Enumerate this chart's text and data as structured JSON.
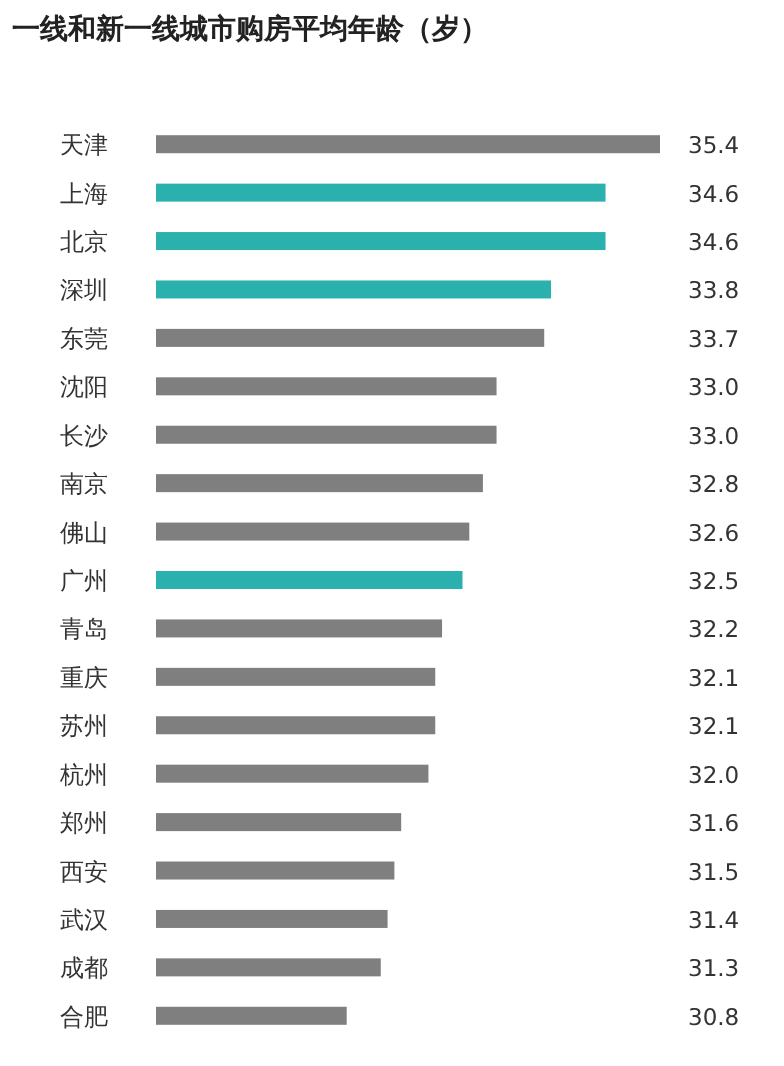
{
  "chart_data": {
    "type": "bar",
    "orientation": "horizontal",
    "title": "一线和新一线城市购房平均年龄（岁）",
    "categories": [
      "天津",
      "上海",
      "北京",
      "深圳",
      "东莞",
      "沈阳",
      "长沙",
      "南京",
      "佛山",
      "广州",
      "青岛",
      "重庆",
      "苏州",
      "杭州",
      "郑州",
      "西安",
      "武汉",
      "成都",
      "合肥"
    ],
    "values": [
      35.4,
      34.6,
      34.6,
      33.8,
      33.7,
      33.0,
      33.0,
      32.8,
      32.6,
      32.5,
      32.2,
      32.1,
      32.1,
      32.0,
      31.6,
      31.5,
      31.4,
      31.3,
      30.8
    ],
    "value_labels": [
      "35.4",
      "34.6",
      "34.6",
      "33.8",
      "33.7",
      "33.0",
      "33.0",
      "32.8",
      "32.6",
      "32.5",
      "32.2",
      "32.1",
      "32.1",
      "32.0",
      "31.6",
      "31.5",
      "31.4",
      "31.3",
      "30.8"
    ],
    "colors": [
      "#7f7f7f",
      "#2ab0ad",
      "#2ab0ad",
      "#2ab0ad",
      "#7f7f7f",
      "#7f7f7f",
      "#7f7f7f",
      "#7f7f7f",
      "#7f7f7f",
      "#2ab0ad",
      "#7f7f7f",
      "#7f7f7f",
      "#7f7f7f",
      "#7f7f7f",
      "#7f7f7f",
      "#7f7f7f",
      "#7f7f7f",
      "#7f7f7f",
      "#7f7f7f"
    ],
    "xlim": [
      28,
      35.4
    ]
  }
}
